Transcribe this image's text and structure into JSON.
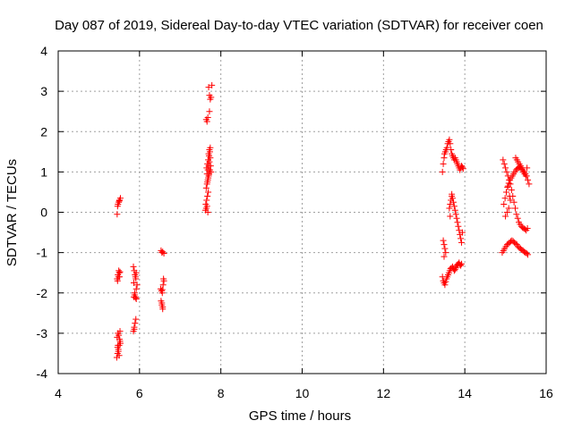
{
  "chart_data": {
    "type": "scatter",
    "title": "Day 087 of 2019, Sidereal Day-to-day VTEC variation (SDTVAR) for receiver coen",
    "xlabel": "GPS time / hours",
    "ylabel": "SDTVAR / TECUs",
    "xlim": [
      4,
      16
    ],
    "ylim": [
      -4,
      4
    ],
    "xticks": [
      4,
      6,
      8,
      10,
      12,
      14,
      16
    ],
    "yticks": [
      -4,
      -3,
      -2,
      -1,
      0,
      1,
      2,
      3,
      4
    ],
    "grid": true,
    "marker": "+",
    "color": "#ff0000",
    "series": [
      {
        "name": "SDTVAR",
        "x": [
          5.45,
          5.47,
          5.49,
          5.51,
          5.53,
          5.46,
          5.48,
          5.5,
          5.52,
          5.45,
          5.47,
          5.49,
          5.51,
          5.46,
          5.5,
          5.44,
          5.46,
          5.48,
          5.5,
          5.52,
          5.45,
          5.47,
          5.49,
          5.51,
          5.53,
          5.46,
          5.48,
          5.5,
          5.52,
          5.47,
          5.85,
          5.87,
          5.89,
          5.91,
          5.86,
          5.88,
          5.9,
          5.92,
          5.85,
          5.87,
          5.89,
          5.91,
          5.9,
          5.92,
          5.86,
          5.88,
          5.9,
          5.92,
          5.94,
          5.87,
          6.53,
          6.55,
          6.57,
          6.6,
          6.52,
          6.54,
          6.56,
          6.58,
          6.6,
          6.55,
          6.57,
          6.53,
          6.55,
          6.57,
          6.59,
          6.56,
          7.62,
          7.64,
          7.66,
          7.68,
          7.63,
          7.65,
          7.67,
          7.69,
          7.64,
          7.66,
          7.68,
          7.7,
          7.72,
          7.65,
          7.67,
          7.69,
          7.71,
          7.73,
          7.66,
          7.68,
          7.7,
          7.72,
          7.74,
          7.67,
          7.69,
          7.71,
          7.73,
          7.75,
          7.7,
          7.72,
          7.74,
          7.76,
          7.64,
          7.66,
          7.68,
          7.72,
          7.74,
          7.76,
          7.78,
          7.7,
          7.72,
          13.45,
          13.47,
          13.49,
          13.5,
          13.52,
          13.54,
          13.56,
          13.58,
          13.6,
          13.62,
          13.64,
          13.66,
          13.68,
          13.7,
          13.72,
          13.74,
          13.76,
          13.78,
          13.8,
          13.82,
          13.84,
          13.86,
          13.88,
          13.9,
          13.92,
          13.94,
          13.96,
          13.45,
          13.47,
          13.49,
          13.51,
          13.53,
          13.55,
          13.57,
          13.59,
          13.61,
          13.63,
          13.65,
          13.67,
          13.7,
          13.72,
          13.74,
          13.76,
          13.78,
          13.8,
          13.82,
          13.84,
          13.86,
          13.88,
          13.9,
          13.92,
          13.47,
          13.49,
          13.51,
          13.53,
          13.49,
          13.62,
          13.64,
          13.66,
          13.68,
          13.7,
          13.72,
          13.74,
          13.76,
          13.78,
          13.8,
          13.82,
          13.84,
          13.86,
          13.88,
          13.9,
          13.92,
          13.94,
          13.64,
          13.68,
          14.92,
          14.95,
          14.98,
          15.01,
          15.04,
          15.07,
          15.1,
          15.13,
          15.16,
          15.19,
          15.22,
          15.25,
          15.28,
          15.31,
          15.34,
          15.37,
          15.4,
          15.43,
          15.46,
          15.49,
          15.52,
          15.55,
          14.94,
          14.97,
          15.0,
          15.03,
          15.06,
          15.09,
          15.12,
          15.15,
          15.18,
          15.21,
          15.24,
          15.27,
          15.3,
          15.33,
          15.36,
          15.39,
          15.42,
          15.45,
          15.48,
          15.51,
          15.54,
          14.96,
          14.99,
          15.02,
          15.05,
          15.08,
          15.11,
          15.14,
          15.17,
          15.2,
          15.23,
          15.26,
          15.29,
          15.32,
          15.35,
          15.38,
          15.41,
          15.44,
          15.47,
          15.5,
          15.53,
          15.25,
          15.28,
          15.31,
          15.34,
          15.37,
          15.4,
          15.43,
          15.46,
          15.49,
          15.52,
          15.55,
          15.58,
          15.0,
          15.04,
          15.08,
          15.12,
          15.02,
          15.06,
          15.1
        ],
        "y": [
          -0.05,
          0.2,
          0.25,
          0.3,
          0.35,
          -1.7,
          -1.6,
          -1.5,
          -1.48,
          -1.65,
          -1.55,
          -1.45,
          -1.6,
          0.15,
          0.28,
          -3.6,
          -3.5,
          -3.4,
          -3.3,
          -3.2,
          -3.1,
          -3.0,
          -3.05,
          -3.15,
          -3.25,
          -3.35,
          -3.45,
          -3.55,
          -2.95,
          -3.3,
          -1.35,
          -1.45,
          -1.55,
          -1.65,
          -1.75,
          -2.05,
          -2.1,
          -2.15,
          -2.95,
          -2.85,
          -2.75,
          -2.65,
          -1.6,
          -1.5,
          -2.1,
          -2.0,
          -2.12,
          -1.9,
          -1.8,
          -2.9,
          -0.95,
          -1.0,
          -0.98,
          -1.02,
          -1.9,
          -1.95,
          -2.0,
          -1.8,
          -1.7,
          -2.25,
          -2.35,
          -2.2,
          -2.3,
          -2.4,
          -1.65,
          -1.92,
          0.05,
          0.1,
          0.15,
          0.0,
          0.2,
          0.3,
          0.4,
          0.5,
          0.6,
          0.7,
          0.8,
          0.9,
          1.0,
          1.1,
          1.2,
          1.3,
          1.4,
          1.5,
          0.95,
          1.05,
          1.15,
          1.25,
          1.35,
          0.75,
          0.85,
          0.95,
          1.05,
          1.15,
          1.45,
          1.55,
          1.6,
          1.0,
          2.3,
          2.25,
          2.35,
          2.5,
          2.8,
          2.85,
          3.15,
          3.1,
          2.9,
          1.0,
          1.2,
          1.35,
          1.45,
          1.5,
          1.55,
          1.6,
          1.7,
          1.75,
          1.8,
          1.7,
          1.55,
          1.45,
          1.4,
          1.35,
          1.3,
          1.35,
          1.3,
          1.25,
          1.2,
          1.15,
          1.1,
          1.05,
          1.1,
          1.15,
          1.12,
          1.08,
          -1.6,
          -1.7,
          -1.75,
          -1.8,
          -1.72,
          -1.65,
          -1.6,
          -1.55,
          -1.5,
          -1.45,
          -1.4,
          -1.38,
          -1.35,
          -1.4,
          -1.45,
          -1.42,
          -1.38,
          -1.32,
          -1.3,
          -1.28,
          -1.25,
          -1.3,
          -1.32,
          -1.28,
          -0.7,
          -0.8,
          -0.9,
          -1.0,
          -1.1,
          0.1,
          0.2,
          0.3,
          0.4,
          0.35,
          0.25,
          0.15,
          0.05,
          -0.05,
          -0.15,
          -0.25,
          -0.35,
          -0.45,
          -0.55,
          -0.65,
          -0.75,
          -0.5,
          -0.1,
          0.45,
          -1.0,
          -0.95,
          -0.9,
          -0.85,
          -0.8,
          -0.78,
          -0.75,
          -0.72,
          -0.7,
          -0.72,
          -0.75,
          -0.78,
          -0.8,
          -0.85,
          -0.88,
          -0.9,
          -0.93,
          -0.95,
          -0.98,
          -1.0,
          -1.02,
          -1.05,
          1.3,
          1.2,
          1.1,
          1.0,
          0.9,
          0.8,
          0.7,
          0.55,
          0.4,
          0.25,
          0.1,
          -0.05,
          -0.15,
          -0.25,
          -0.3,
          -0.35,
          -0.38,
          -0.4,
          -0.42,
          -0.45,
          -0.4,
          0.2,
          0.35,
          0.5,
          0.62,
          0.72,
          0.8,
          0.85,
          0.9,
          0.95,
          1.0,
          1.05,
          1.08,
          1.1,
          1.12,
          1.1,
          1.05,
          1.0,
          0.95,
          0.9,
          1.1,
          1.35,
          1.3,
          1.25,
          1.2,
          1.15,
          1.1,
          1.05,
          1.0,
          0.95,
          0.9,
          0.8,
          0.7,
          -0.1,
          0.0,
          0.1,
          0.3,
          0.5,
          0.65,
          0.4
        ]
      }
    ]
  }
}
